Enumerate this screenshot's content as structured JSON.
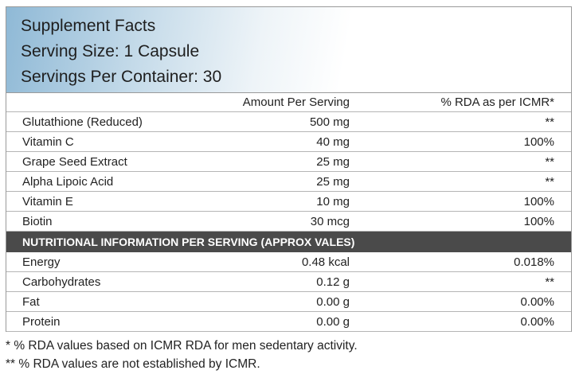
{
  "header": {
    "title": "Supplement Facts",
    "serving_size": "Serving Size: 1 Capsule",
    "servings_per_container": "Servings Per Container: 30"
  },
  "table": {
    "columns": [
      "Amount Per Serving",
      "% RDA as per ICMR*"
    ],
    "rows": [
      [
        "Glutathione (Reduced)",
        "500 mg",
        "**"
      ],
      [
        "Vitamin C",
        "40 mg",
        "100%"
      ],
      [
        "Grape Seed Extract",
        "25 mg",
        "**"
      ],
      [
        "Alpha Lipoic Acid",
        "25 mg",
        "**"
      ],
      [
        "Vitamin E",
        "10 mg",
        "100%"
      ],
      [
        "Biotin",
        "30 mcg",
        "100%"
      ]
    ],
    "section_title": "NUTRITIONAL INFORMATION PER SERVING (APPROX VALES)",
    "nutrition_rows": [
      [
        "Energy",
        "0.48 kcal",
        "0.018%"
      ],
      [
        "Carbohydrates",
        "0.12 g",
        "**"
      ],
      [
        "Fat",
        "0.00 g",
        "0.00%"
      ],
      [
        "Protein",
        "0.00 g",
        "0.00%"
      ]
    ]
  },
  "footnotes": [
    "* % RDA values based on ICMR RDA for men sedentary activity.",
    "** % RDA values are not established by ICMR."
  ]
}
